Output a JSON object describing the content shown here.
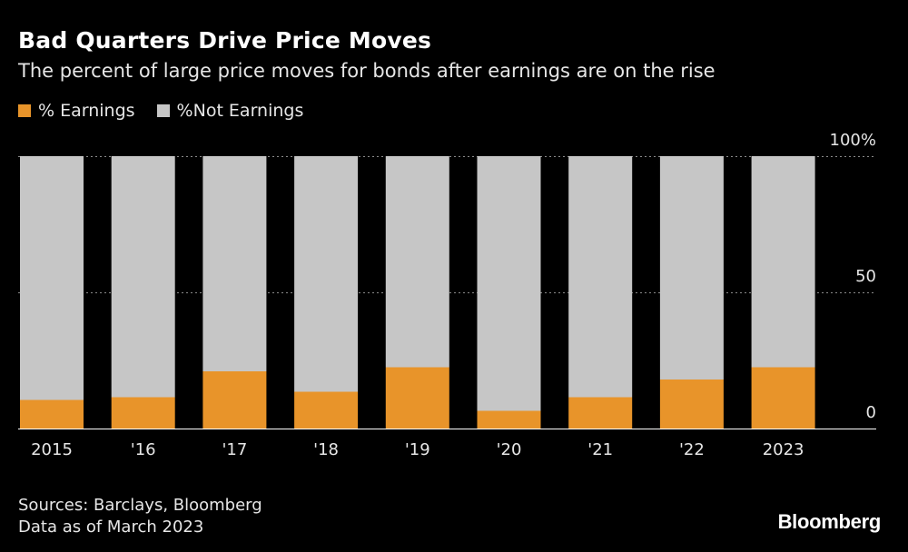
{
  "header": {
    "title": "Bad Quarters Drive Price Moves",
    "subtitle": "The percent of large price moves for bonds after earnings are on the rise"
  },
  "legend": {
    "items": [
      {
        "label": "% Earnings",
        "color": "#e8942a"
      },
      {
        "label": "%Not Earnings",
        "color": "#c6c6c6"
      }
    ]
  },
  "chart_data": {
    "type": "bar",
    "stacked": true,
    "title": "Bad Quarters Drive Price Moves",
    "categories": [
      "2015",
      "'16",
      "'17",
      "'18",
      "'19",
      "'20",
      "'21",
      "'22",
      "2023"
    ],
    "series": [
      {
        "name": "% Earnings",
        "color": "#e8942a",
        "values": [
          10.5,
          11.5,
          21,
          13.5,
          22.5,
          6.5,
          11.5,
          18,
          22.5
        ]
      },
      {
        "name": "%Not Earnings",
        "color": "#c6c6c6",
        "values": [
          89.5,
          88.5,
          79,
          86.5,
          77.5,
          93.5,
          88.5,
          82,
          77.5
        ]
      }
    ],
    "ylim": [
      0,
      100
    ],
    "yticks": [
      {
        "value": 0,
        "label": "0"
      },
      {
        "value": 50,
        "label": "50"
      },
      {
        "value": 100,
        "label": "100%"
      }
    ],
    "xlabel": "",
    "ylabel": "",
    "grid": true,
    "axis_position": "right"
  },
  "footer": {
    "source_line1": "Sources: Barclays, Bloomberg",
    "source_line2": "Data as of March 2023",
    "brand": "Bloomberg"
  }
}
